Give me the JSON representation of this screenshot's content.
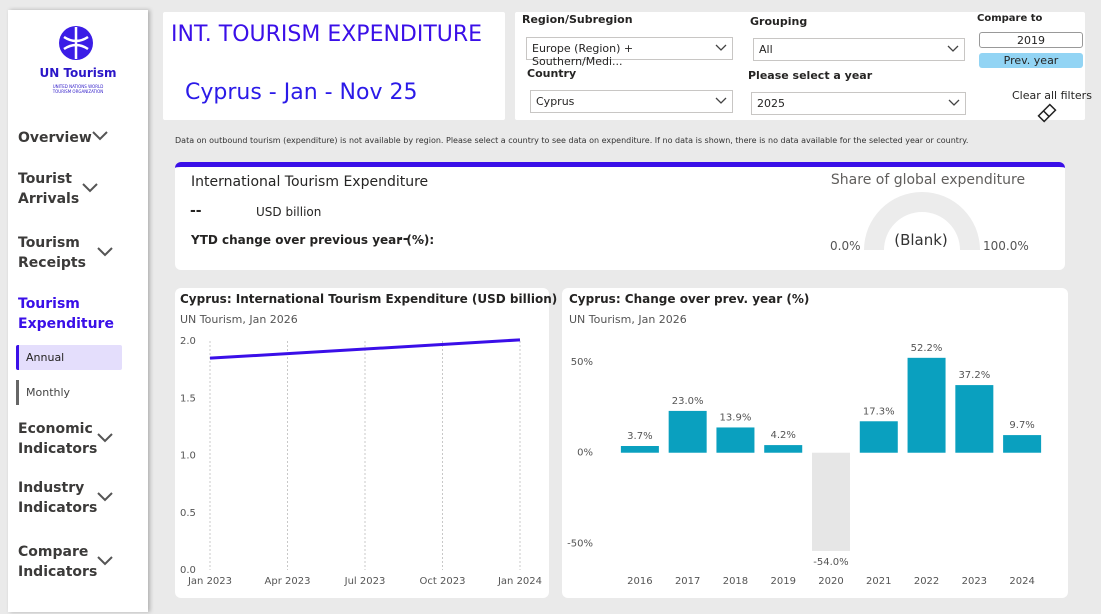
{
  "sidebar": {
    "logo_title": "UN Tourism",
    "logo_subtitle": "UNITED NATIONS WORLD TOURISM ORGANIZATION",
    "nav": [
      "Overview",
      "Tourist Arrivals",
      "Tourism Receipts",
      "Tourism Expenditure",
      "Economic Indicators",
      "Industry Indicators",
      "Compare Indicators"
    ],
    "subnav": [
      "Annual",
      "Monthly"
    ]
  },
  "header": {
    "title": "INT. TOURISM EXPENDITURE",
    "subtitle": "Cyprus - Jan - Nov 25"
  },
  "filters": {
    "region_label": "Region/Subregion",
    "region_value": "Europe (Region) + Southern/Medi...",
    "country_label": "Country",
    "country_value": "Cyprus",
    "grouping_label": "Grouping",
    "grouping_value": "All",
    "year_label": "Please select a year",
    "year_value": "2025",
    "compare_label": "Compare to",
    "compare_value": "2019",
    "compare_button": "Prev. year",
    "clear": "Clear all filters"
  },
  "note": "Data on outbound tourism (expenditure) is not available by region. Please select a country to see data on expenditure.  If no data is shown, there is no data available for the selected year or country.",
  "kpi": {
    "title": "International Tourism Expenditure",
    "value": "--",
    "unit": "USD billion",
    "ytd_label": "YTD change over previous year (%):",
    "ytd_value": "--",
    "ytd_extra": "--"
  },
  "gauge": {
    "title": "Share of global expenditure",
    "center": "(Blank)",
    "min": "0.0%",
    "max": "100.0%"
  },
  "chart_data": [
    {
      "type": "line",
      "title": "Cyprus: International Tourism Expenditure (USD billion)",
      "subtitle": "UN Tourism, Jan 2026",
      "x": [
        "2023-01",
        "2024-01"
      ],
      "values": [
        1.85,
        2.01
      ],
      "color": "#3a0fe8",
      "xlim": [
        "2023-01",
        "2024-01"
      ],
      "xticks": [
        {
          "value": "2023-01",
          "label": "Jan 2023"
        },
        {
          "value": "2023-04",
          "label": "Apr 2023"
        },
        {
          "value": "2023-07",
          "label": "Jul 2023"
        },
        {
          "value": "2023-10",
          "label": "Oct 2023"
        },
        {
          "value": "2024-01",
          "label": "Jan 2024"
        }
      ],
      "ylim": [
        0,
        2
      ],
      "yticks": [
        {
          "value": 0,
          "label": "0.0"
        },
        {
          "value": 0.5,
          "label": "0.5"
        },
        {
          "value": 1,
          "label": "1.0"
        },
        {
          "value": 1.5,
          "label": "1.5"
        },
        {
          "value": 2,
          "label": "2.0"
        }
      ]
    },
    {
      "type": "bar",
      "title": "Cyprus: Change over prev. year (%)",
      "subtitle": "UN Tourism, Jan 2026",
      "categories": [
        "2016",
        "2017",
        "2018",
        "2019",
        "2020",
        "2021",
        "2022",
        "2023",
        "2024"
      ],
      "values": [
        3.7,
        23.0,
        13.9,
        4.2,
        -54.0,
        17.3,
        52.2,
        37.2,
        9.7
      ],
      "value_labels": [
        "3.7%",
        "23.0%",
        "13.9%",
        "4.2%",
        "-54.0%",
        "17.3%",
        "52.2%",
        "37.2%",
        "9.7%"
      ],
      "colors": [
        "#0aa0bf",
        "#0aa0bf",
        "#0aa0bf",
        "#0aa0bf",
        "#e6e6e6",
        "#0aa0bf",
        "#0aa0bf",
        "#0aa0bf",
        "#0aa0bf"
      ],
      "ylim": [
        -59,
        62
      ],
      "yticks": [
        {
          "value": 50,
          "label": "50%"
        },
        {
          "value": 0,
          "label": "0%"
        },
        {
          "value": -50,
          "label": "-50%"
        }
      ]
    }
  ]
}
